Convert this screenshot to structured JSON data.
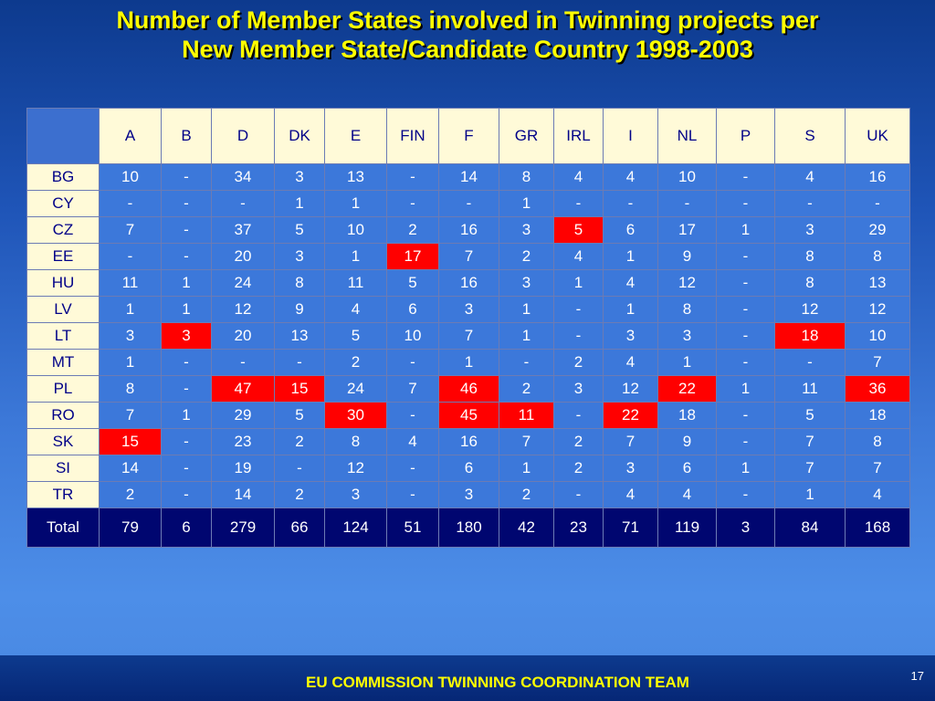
{
  "title": {
    "line1": "Number of Member States involved in Twinning projects per",
    "line2": "New Member State/Candidate Country 1998-2003"
  },
  "footer": {
    "text": "EU COMMISSION TWINNING COORDINATION TEAM",
    "page_number": "17"
  },
  "table": {
    "headers": [
      "A",
      "B",
      "D",
      "DK",
      "E",
      "FIN",
      "F",
      "GR",
      "IRL",
      "I",
      "NL",
      "P",
      "S",
      "UK"
    ],
    "highlight_color": "#ff0000",
    "rows": [
      {
        "label": "BG",
        "cells": [
          "10",
          "-",
          "34",
          "3",
          "13",
          "-",
          "14",
          "8",
          "4",
          "4",
          "10",
          "-",
          "4",
          "16"
        ],
        "highlighted": []
      },
      {
        "label": "CY",
        "cells": [
          "-",
          "-",
          "-",
          "1",
          "1",
          "-",
          "-",
          "1",
          "-",
          "-",
          "-",
          "-",
          "-",
          "-"
        ],
        "highlighted": []
      },
      {
        "label": "CZ",
        "cells": [
          "7",
          "-",
          "37",
          "5",
          "10",
          "2",
          "16",
          "3",
          "5",
          "6",
          "17",
          "1",
          "3",
          "29"
        ],
        "highlighted": [
          8
        ]
      },
      {
        "label": "EE",
        "cells": [
          "-",
          "-",
          "20",
          "3",
          "1",
          "17",
          "7",
          "2",
          "4",
          "1",
          "9",
          "-",
          "8",
          "8"
        ],
        "highlighted": [
          5
        ]
      },
      {
        "label": "HU",
        "cells": [
          "11",
          "1",
          "24",
          "8",
          "11",
          "5",
          "16",
          "3",
          "1",
          "4",
          "12",
          "-",
          "8",
          "13"
        ],
        "highlighted": []
      },
      {
        "label": "LV",
        "cells": [
          "1",
          "1",
          "12",
          "9",
          "4",
          "6",
          "3",
          "1",
          "-",
          "1",
          "8",
          "-",
          "12",
          "12"
        ],
        "highlighted": []
      },
      {
        "label": "LT",
        "cells": [
          "3",
          "3",
          "20",
          "13",
          "5",
          "10",
          "7",
          "1",
          "-",
          "3",
          "3",
          "-",
          "18",
          "10"
        ],
        "highlighted": [
          1,
          12
        ]
      },
      {
        "label": "MT",
        "cells": [
          "1",
          "-",
          "-",
          "-",
          "2",
          "-",
          "1",
          "-",
          "2",
          "4",
          "1",
          "-",
          "-",
          "7"
        ],
        "highlighted": []
      },
      {
        "label": "PL",
        "cells": [
          "8",
          "-",
          "47",
          "15",
          "24",
          "7",
          "46",
          "2",
          "3",
          "12",
          "22",
          "1",
          "11",
          "36"
        ],
        "highlighted": [
          2,
          3,
          6,
          10,
          13
        ]
      },
      {
        "label": "RO",
        "cells": [
          "7",
          "1",
          "29",
          "5",
          "30",
          "-",
          "45",
          "11",
          "-",
          "22",
          "18",
          "-",
          "5",
          "18"
        ],
        "highlighted": [
          4,
          6,
          7,
          9
        ]
      },
      {
        "label": "SK",
        "cells": [
          "15",
          "-",
          "23",
          "2",
          "8",
          "4",
          "16",
          "7",
          "2",
          "7",
          "9",
          "-",
          "7",
          "8"
        ],
        "highlighted": [
          0
        ]
      },
      {
        "label": "SI",
        "cells": [
          "14",
          "-",
          "19",
          "-",
          "12",
          "-",
          "6",
          "1",
          "2",
          "3",
          "6",
          "1",
          "7",
          "7"
        ],
        "highlighted": []
      },
      {
        "label": "TR",
        "cells": [
          "2",
          "-",
          "14",
          "2",
          "3",
          "-",
          "3",
          "2",
          "-",
          "4",
          "4",
          "-",
          "1",
          "4"
        ],
        "highlighted": []
      }
    ],
    "total": {
      "label": "Total",
      "cells": [
        "79",
        "6",
        "279",
        "66",
        "124",
        "51",
        "180",
        "42",
        "23",
        "71",
        "119",
        "3",
        "84",
        "168"
      ]
    }
  }
}
